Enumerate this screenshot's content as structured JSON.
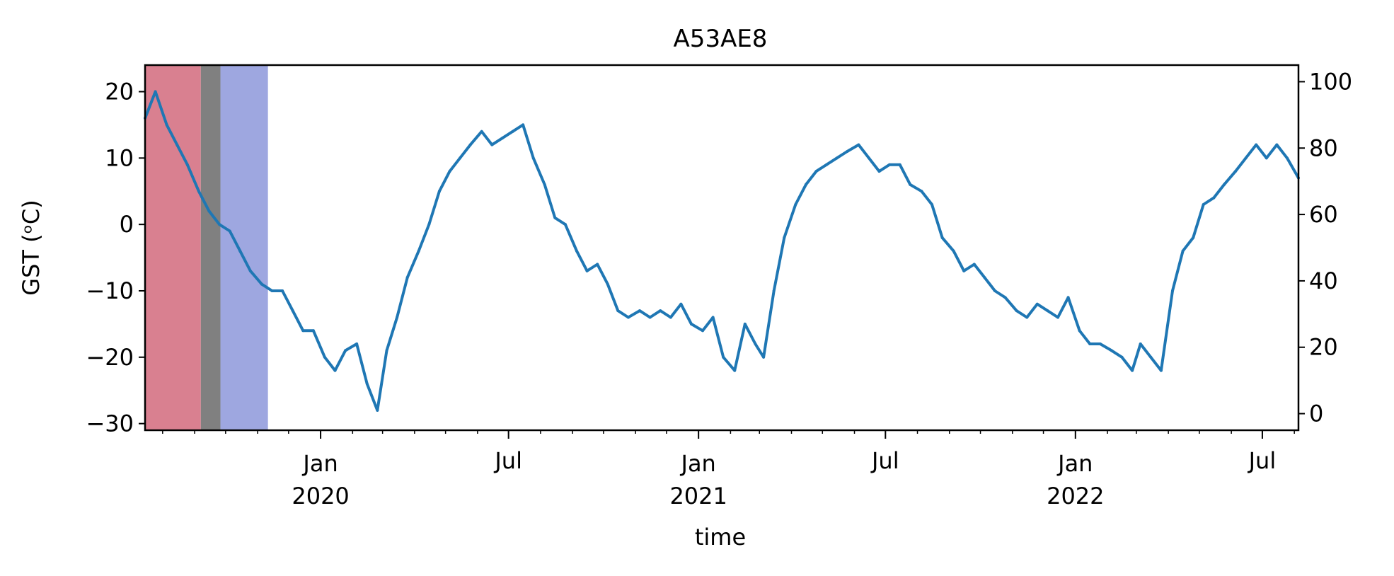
{
  "chart_data": {
    "type": "line",
    "title": "A53AE8",
    "xlabel": "time",
    "ylabel": "GST (ᵒC)",
    "ylim": [
      -31,
      24
    ],
    "y2lim": [
      -5,
      105
    ],
    "x_range": [
      "2019-07-15",
      "2022-08-05"
    ],
    "yticks": [
      -30,
      -20,
      -10,
      0,
      10,
      20
    ],
    "y2ticks": [
      0,
      20,
      40,
      60,
      80,
      100
    ],
    "xticks": [
      {
        "date": "2020-01-01",
        "label": "Jan",
        "year": "2020"
      },
      {
        "date": "2020-07-01",
        "label": "Jul",
        "year": ""
      },
      {
        "date": "2021-01-01",
        "label": "Jan",
        "year": "2021"
      },
      {
        "date": "2021-07-01",
        "label": "Jul",
        "year": ""
      },
      {
        "date": "2022-01-01",
        "label": "Jan",
        "year": "2022"
      },
      {
        "date": "2022-07-01",
        "label": "Jul",
        "year": ""
      }
    ],
    "shaded_spans": [
      {
        "start": "2019-07-15",
        "end": "2019-09-07",
        "color": "#d98090"
      },
      {
        "start": "2019-09-07",
        "end": "2019-09-26",
        "color": "#808080"
      },
      {
        "start": "2019-09-26",
        "end": "2019-11-11",
        "color": "#9ea7e0"
      }
    ],
    "series": [
      {
        "color": "#1f77b4",
        "x": [
          "2019-07-15",
          "2019-07-25",
          "2019-08-05",
          "2019-08-15",
          "2019-08-25",
          "2019-09-05",
          "2019-09-15",
          "2019-09-25",
          "2019-10-05",
          "2019-10-15",
          "2019-10-25",
          "2019-11-05",
          "2019-11-15",
          "2019-11-25",
          "2019-12-05",
          "2019-12-15",
          "2019-12-25",
          "2020-01-05",
          "2020-01-15",
          "2020-01-25",
          "2020-02-05",
          "2020-02-15",
          "2020-02-25",
          "2020-03-05",
          "2020-03-15",
          "2020-03-25",
          "2020-04-05",
          "2020-04-15",
          "2020-04-25",
          "2020-05-05",
          "2020-05-15",
          "2020-05-25",
          "2020-06-05",
          "2020-06-15",
          "2020-06-25",
          "2020-07-05",
          "2020-07-15",
          "2020-07-25",
          "2020-08-05",
          "2020-08-15",
          "2020-08-25",
          "2020-09-05",
          "2020-09-15",
          "2020-09-25",
          "2020-10-05",
          "2020-10-15",
          "2020-10-25",
          "2020-11-05",
          "2020-11-15",
          "2020-11-25",
          "2020-12-05",
          "2020-12-15",
          "2020-12-25",
          "2021-01-05",
          "2021-01-15",
          "2021-01-25",
          "2021-02-05",
          "2021-02-15",
          "2021-02-25",
          "2021-03-05",
          "2021-03-15",
          "2021-03-25",
          "2021-04-05",
          "2021-04-15",
          "2021-04-25",
          "2021-05-05",
          "2021-05-15",
          "2021-05-25",
          "2021-06-05",
          "2021-06-15",
          "2021-06-25",
          "2021-07-05",
          "2021-07-15",
          "2021-07-25",
          "2021-08-05",
          "2021-08-15",
          "2021-08-25",
          "2021-09-05",
          "2021-09-15",
          "2021-09-25",
          "2021-10-05",
          "2021-10-15",
          "2021-10-25",
          "2021-11-05",
          "2021-11-15",
          "2021-11-25",
          "2021-12-05",
          "2021-12-15",
          "2021-12-25",
          "2022-01-05",
          "2022-01-15",
          "2022-01-25",
          "2022-02-05",
          "2022-02-15",
          "2022-02-25",
          "2022-03-05",
          "2022-03-15",
          "2022-03-25",
          "2022-04-05",
          "2022-04-15",
          "2022-04-25",
          "2022-05-05",
          "2022-05-15",
          "2022-05-25",
          "2022-06-05",
          "2022-06-15",
          "2022-06-25",
          "2022-07-05",
          "2022-07-15",
          "2022-07-25",
          "2022-08-05"
        ],
        "y": [
          16,
          20,
          15,
          12,
          9,
          5,
          2,
          0,
          -1,
          -4,
          -7,
          -9,
          -10,
          -10,
          -13,
          -16,
          -16,
          -20,
          -22,
          -19,
          -18,
          -24,
          -28,
          -19,
          -14,
          -8,
          -4,
          0,
          5,
          8,
          10,
          12,
          14,
          12,
          13,
          14,
          15,
          10,
          6,
          1,
          0,
          -4,
          -7,
          -6,
          -9,
          -13,
          -14,
          -13,
          -14,
          -13,
          -14,
          -12,
          -15,
          -16,
          -14,
          -20,
          -22,
          -15,
          -18,
          -20,
          -10,
          -2,
          3,
          6,
          8,
          9,
          10,
          11,
          12,
          10,
          8,
          9,
          9,
          6,
          5,
          3,
          -2,
          -4,
          -7,
          -6,
          -8,
          -10,
          -11,
          -13,
          -14,
          -12,
          -13,
          -14,
          -11,
          -16,
          -18,
          -18,
          -19,
          -20,
          -22,
          -18,
          -20,
          -22,
          -10,
          -4,
          -2,
          3,
          4,
          6,
          8,
          10,
          12,
          10,
          12,
          10,
          7
        ]
      }
    ]
  }
}
